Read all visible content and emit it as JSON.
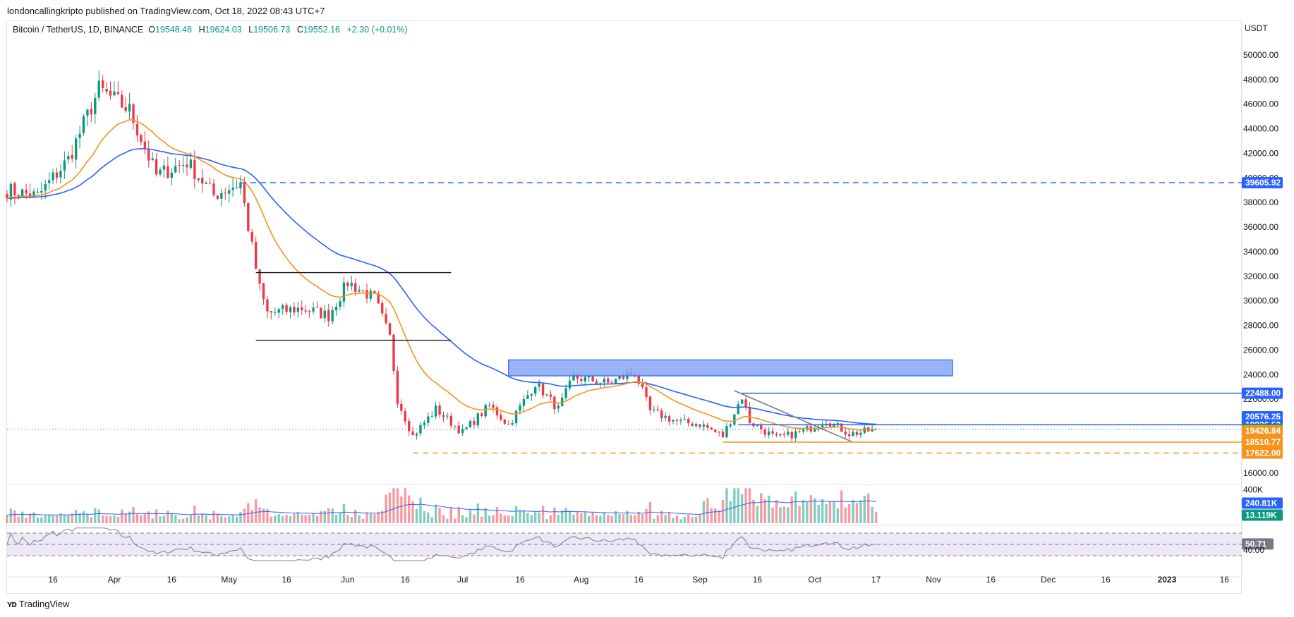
{
  "header": {
    "publisher_line": "londoncallingkripto published on TradingView.com, Oct 18, 2022 08:43 UTC+7",
    "symbol": "Bitcoin / TetherUS, 1D, BINANCE",
    "open_label": "O",
    "open": "19548.48",
    "high_label": "H",
    "high": "19624.03",
    "low_label": "L",
    "low": "19506.73",
    "close_label": "C",
    "close": "19552.16",
    "change": "+2.30 (+0.01%)"
  },
  "footer": {
    "brand": "TradingView",
    "logo_icon": "tradingview-logo-icon"
  },
  "colors": {
    "up": "#089981",
    "down": "#f23645",
    "ema_fast": "#f7931a",
    "ema_slow": "#2962ff",
    "zone_fill": "#7fa0f5",
    "level_blue": "#2962ff",
    "level_orange": "#f7931a",
    "rsi_bg": "#ede7f6",
    "rsi_line": "#7e7e7e",
    "vol_ma": "#2962ff"
  },
  "chart_data": {
    "type": "candlestick",
    "currency_label": "USDT",
    "ylim": [
      15300,
      51600
    ],
    "y_ticks": [
      "16000.00",
      "18000.00",
      "20000.00",
      "22000.00",
      "24000.00",
      "26000.00",
      "28000.00",
      "30000.00",
      "32000.00",
      "34000.00",
      "36000.00",
      "38000.00",
      "40000.00",
      "42000.00",
      "44000.00",
      "46000.00",
      "48000.00",
      "50000.00"
    ],
    "x_ticks": [
      "16",
      "Apr",
      "16",
      "May",
      "16",
      "Jun",
      "16",
      "Jul",
      "16",
      "Aug",
      "16",
      "Sep",
      "16",
      "Oct",
      "17",
      "Nov",
      "16",
      "Dec",
      "16",
      "2023",
      "16"
    ],
    "x_tick_dates": [
      "2022-03-16",
      "2022-04-01",
      "2022-04-16",
      "2022-05-01",
      "2022-05-16",
      "2022-06-01",
      "2022-06-16",
      "2022-07-01",
      "2022-07-16",
      "2022-08-01",
      "2022-08-16",
      "2022-09-01",
      "2022-09-16",
      "2022-10-01",
      "2022-10-17",
      "2022-11-01",
      "2022-11-16",
      "2022-12-01",
      "2022-12-16",
      "2023-01-01",
      "2023-01-16"
    ],
    "x_range": [
      "2022-03-04",
      "2023-01-20"
    ],
    "key_points": [
      {
        "date": "2022-03-04",
        "price": 39000
      },
      {
        "date": "2022-03-12",
        "price": 38500
      },
      {
        "date": "2022-03-20",
        "price": 41500
      },
      {
        "date": "2022-03-28",
        "price": 47200
      },
      {
        "date": "2022-04-05",
        "price": 45500
      },
      {
        "date": "2022-04-12",
        "price": 40200
      },
      {
        "date": "2022-04-20",
        "price": 41300
      },
      {
        "date": "2022-04-27",
        "price": 38600
      },
      {
        "date": "2022-05-04",
        "price": 39600
      },
      {
        "date": "2022-05-06",
        "price": 36000
      },
      {
        "date": "2022-05-09",
        "price": 31000
      },
      {
        "date": "2022-05-11",
        "price": 29000
      },
      {
        "date": "2022-05-20",
        "price": 29400
      },
      {
        "date": "2022-05-27",
        "price": 28800
      },
      {
        "date": "2022-06-01",
        "price": 31500
      },
      {
        "date": "2022-06-08",
        "price": 30200
      },
      {
        "date": "2022-06-12",
        "price": 27000
      },
      {
        "date": "2022-06-14",
        "price": 22000
      },
      {
        "date": "2022-06-18",
        "price": 19000
      },
      {
        "date": "2022-06-24",
        "price": 21200
      },
      {
        "date": "2022-07-01",
        "price": 19300
      },
      {
        "date": "2022-07-08",
        "price": 21500
      },
      {
        "date": "2022-07-13",
        "price": 19900
      },
      {
        "date": "2022-07-20",
        "price": 23300
      },
      {
        "date": "2022-07-26",
        "price": 21200
      },
      {
        "date": "2022-07-30",
        "price": 23800
      },
      {
        "date": "2022-08-08",
        "price": 23300
      },
      {
        "date": "2022-08-15",
        "price": 24200
      },
      {
        "date": "2022-08-19",
        "price": 21000
      },
      {
        "date": "2022-08-27",
        "price": 20100
      },
      {
        "date": "2022-09-01",
        "price": 20000
      },
      {
        "date": "2022-09-07",
        "price": 19000
      },
      {
        "date": "2022-09-12",
        "price": 22200
      },
      {
        "date": "2022-09-14",
        "price": 20200
      },
      {
        "date": "2022-09-21",
        "price": 18800
      },
      {
        "date": "2022-09-28",
        "price": 19400
      },
      {
        "date": "2022-10-04",
        "price": 20300
      },
      {
        "date": "2022-10-10",
        "price": 19200
      },
      {
        "date": "2022-10-13",
        "price": 19300
      },
      {
        "date": "2022-10-17",
        "price": 19552
      }
    ],
    "price_levels": [
      {
        "value": 39605.92,
        "label": "39605.92",
        "style": "dashed",
        "color": "blue",
        "from": "2022-05-04"
      },
      {
        "value": 22488.0,
        "label": "22488.00",
        "style": "solid",
        "color": "blue",
        "from": "2022-09-12"
      },
      {
        "value": 20576.25,
        "label": "20576.25",
        "style": "none",
        "color": "blue"
      },
      {
        "value": 19926.52,
        "label": "19926.52",
        "style": "solid",
        "color": "blue",
        "from": "2022-09-11"
      },
      {
        "value": 19552.16,
        "label": "19552.16",
        "style": "dotted",
        "color": "green"
      },
      {
        "value": 19426.84,
        "label": "19426.84",
        "style": "none",
        "color": "orange"
      },
      {
        "value": 18510.77,
        "label": "18510.77",
        "style": "solid",
        "color": "orange",
        "from": "2022-09-07"
      },
      {
        "value": 17622.0,
        "label": "17622.00",
        "style": "dashed",
        "color": "orange",
        "from": "2022-06-18"
      }
    ],
    "range_box": {
      "top": 32300,
      "bottom": 26800,
      "from": "2022-05-08",
      "to": "2022-06-28"
    },
    "resistance_zone": {
      "top": 25200,
      "bottom": 23900,
      "from": "2022-07-13",
      "to": "2022-11-06"
    },
    "trendline": {
      "from_date": "2022-09-10",
      "from_price": 22700,
      "to_date": "2022-10-11",
      "to_price": 18500
    },
    "volume": {
      "ticks": [
        "400K"
      ],
      "ma_label": "240.81K",
      "last_label": "13.119K",
      "ylim": [
        0,
        440000
      ]
    },
    "rsi": {
      "value_label": "50.71",
      "tick": "40.00",
      "upper": 70,
      "mid": 50,
      "lower": 30,
      "ylim": [
        20,
        80
      ]
    }
  }
}
